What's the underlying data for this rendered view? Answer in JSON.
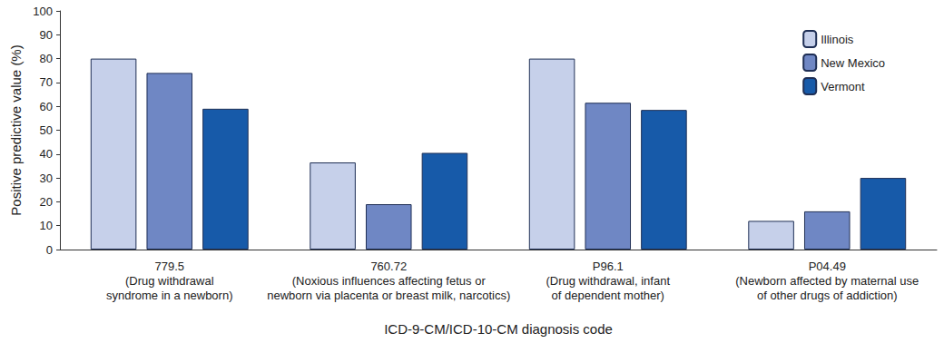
{
  "chart_data": {
    "type": "bar",
    "x_label": "ICD-9-CM/ICD-10-CM diagnosis code",
    "y_label": "Positive predictive value (%)",
    "categories": [
      "779.5\n(Drug withdrawal\nsyndrome in a newborn)",
      "760.72\n(Noxious influences affecting fetus or\nnewborn via placenta or breast milk, narcotics)",
      "P96.1\n(Drug withdrawal, infant\nof dependent mother)",
      "P04.49\n(Newborn affected by maternal use\nof other drugs of addiction)"
    ],
    "series": [
      {
        "name": "Illinois",
        "color": "#c6d0ea",
        "values": [
          80,
          36.5,
          80,
          12
        ]
      },
      {
        "name": "New Mexico",
        "color": "#6f87c4",
        "values": [
          74,
          19,
          61.5,
          16
        ]
      },
      {
        "name": "Vermont",
        "color": "#175aa9",
        "values": [
          59,
          40.5,
          58.5,
          30
        ]
      }
    ],
    "ylim": [
      0,
      100
    ],
    "yticks": [
      0,
      10,
      20,
      30,
      40,
      50,
      60,
      70,
      80,
      90,
      100
    ],
    "grid": false,
    "legend": "top-right"
  }
}
